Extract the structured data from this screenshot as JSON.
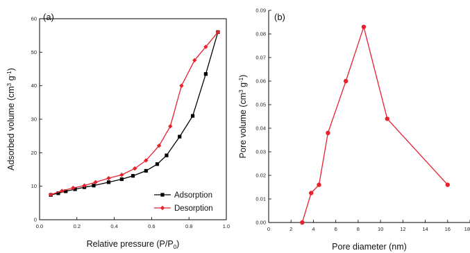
{
  "chart_data": [
    {
      "type": "line",
      "panel_label": "(a)",
      "xlabel": "Relative pressure (P/P",
      "xlabel_sub": "0",
      "xlabel_tail": ")",
      "ylabel": "Adsorbed volume (cm",
      "ylabel_sup1": "3",
      "ylabel_mid": " g",
      "ylabel_sup2": "-1",
      "ylabel_tail": ")",
      "xlim": [
        0.0,
        1.0
      ],
      "ylim": [
        0,
        60
      ],
      "xticks": [
        0.0,
        0.2,
        0.4,
        0.6,
        0.8,
        1.0
      ],
      "xtick_labels": [
        "0.0",
        "0.2",
        "0.4",
        "0.6",
        "0.8",
        "1.0"
      ],
      "yticks": [
        0,
        10,
        20,
        30,
        40,
        50,
        60
      ],
      "ytick_labels": [
        "0",
        "10",
        "20",
        "30",
        "40",
        "50",
        "60"
      ],
      "legend_position": "bottom-right",
      "series": [
        {
          "name": "Adsorption",
          "color": "#000000",
          "marker": "square",
          "x": [
            0.06,
            0.1,
            0.14,
            0.19,
            0.24,
            0.29,
            0.37,
            0.44,
            0.5,
            0.57,
            0.63,
            0.68,
            0.75,
            0.82,
            0.89,
            0.955
          ],
          "y": [
            7.4,
            7.9,
            8.5,
            9.1,
            9.7,
            10.2,
            11.2,
            12.1,
            13.1,
            14.6,
            16.6,
            19.2,
            24.8,
            31.0,
            43.5,
            56.0
          ]
        },
        {
          "name": "Desorption",
          "color": "#e8212e",
          "marker": "diamond",
          "x": [
            0.06,
            0.12,
            0.18,
            0.24,
            0.3,
            0.37,
            0.44,
            0.51,
            0.57,
            0.64,
            0.7,
            0.76,
            0.83,
            0.89,
            0.955
          ],
          "y": [
            7.5,
            8.6,
            9.5,
            10.2,
            11.2,
            12.4,
            13.4,
            15.3,
            17.7,
            22.1,
            27.9,
            40.0,
            47.6,
            51.6,
            56.0
          ]
        }
      ]
    },
    {
      "type": "line",
      "panel_label": "(b)",
      "xlabel": "Pore diameter (nm)",
      "ylabel": "Pore volume (cm",
      "ylabel_sup1": "3",
      "ylabel_mid": " g",
      "ylabel_sup2": "-1",
      "ylabel_tail": ")",
      "xlim": [
        0,
        18
      ],
      "ylim": [
        0.0,
        0.09
      ],
      "xticks": [
        0,
        2,
        4,
        6,
        8,
        10,
        12,
        14,
        16,
        18
      ],
      "xtick_labels": [
        "0",
        "2",
        "4",
        "6",
        "8",
        "10",
        "12",
        "14",
        "16",
        "18"
      ],
      "yticks": [
        0.0,
        0.01,
        0.02,
        0.03,
        0.04,
        0.05,
        0.06,
        0.07,
        0.08,
        0.09
      ],
      "ytick_labels": [
        "0.00",
        "0.01",
        "0.02",
        "0.03",
        "0.04",
        "0.05",
        "0.06",
        "0.07",
        "0.08",
        "0.09"
      ],
      "series": [
        {
          "color": "#e8212e",
          "marker": "circle",
          "x": [
            3.0,
            3.8,
            4.5,
            5.3,
            6.9,
            8.5,
            10.6,
            16.0
          ],
          "y": [
            0.0,
            0.0125,
            0.016,
            0.038,
            0.06,
            0.083,
            0.044,
            0.016
          ]
        }
      ]
    }
  ]
}
